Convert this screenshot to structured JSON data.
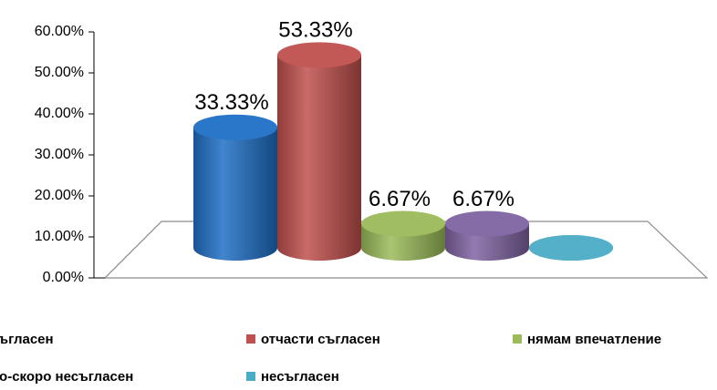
{
  "chart_data": {
    "type": "bar",
    "categories": [
      "съгласен",
      "отчасти съгласен",
      "нямам впечатление",
      "по-скоро несъгласен",
      "несъгласен"
    ],
    "values": [
      33.33,
      53.33,
      6.67,
      6.67,
      0
    ],
    "value_labels": [
      "33.33%",
      "53.33%",
      "6.67%",
      "6.67%",
      null
    ],
    "colors": [
      "#1f6fc5",
      "#c0504d",
      "#9bbb59",
      "#8064a2",
      "#4bacc6"
    ],
    "ylim": [
      0,
      60
    ],
    "yticks": [
      {
        "value": 0,
        "label": "0.00%"
      },
      {
        "value": 10,
        "label": "10.00%"
      },
      {
        "value": 20,
        "label": "20.00%"
      },
      {
        "value": 30,
        "label": "30.00%"
      },
      {
        "value": 40,
        "label": "40.00%"
      },
      {
        "value": 50,
        "label": "50.00%"
      },
      {
        "value": 60,
        "label": "60.00%"
      }
    ]
  }
}
